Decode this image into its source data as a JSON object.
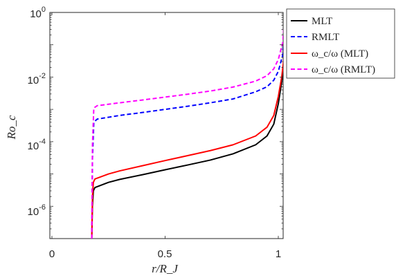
{
  "chart_data": {
    "type": "line",
    "xlabel": "r/R_J",
    "ylabel": "Ro_c",
    "xlim": [
      0,
      1.03
    ],
    "ylim_log10": [
      -7,
      0
    ],
    "y_scale": "log",
    "grid": false,
    "legend_placement": "top-right, outside axes",
    "xticks": [
      {
        "value": 0,
        "label": "0"
      },
      {
        "value": 0.5,
        "label": "0.5"
      },
      {
        "value": 1,
        "label": "1"
      }
    ],
    "yticks": [
      {
        "exp": 0,
        "base": "10",
        "sup": "0"
      },
      {
        "exp": -2,
        "base": "10",
        "sup": "-2"
      },
      {
        "exp": -4,
        "base": "10",
        "sup": "-4"
      },
      {
        "exp": -6,
        "base": "10",
        "sup": "-6"
      }
    ],
    "series": [
      {
        "name": "MLT",
        "color": "#000000",
        "dash": "solid",
        "points": [
          [
            0.176,
            1e-07
          ],
          [
            0.179,
            1e-06
          ],
          [
            0.183,
            3e-06
          ],
          [
            0.19,
            3.8e-06
          ],
          [
            0.25,
            5.5e-06
          ],
          [
            0.3,
            6.8e-06
          ],
          [
            0.4,
            9.5e-06
          ],
          [
            0.5,
            1.35e-05
          ],
          [
            0.6,
            1.9e-05
          ],
          [
            0.7,
            2.7e-05
          ],
          [
            0.8,
            4.2e-05
          ],
          [
            0.9,
            8e-05
          ],
          [
            0.95,
            0.00015
          ],
          [
            0.98,
            0.00035
          ],
          [
            1.0,
            0.0015
          ],
          [
            1.015,
            0.007
          ],
          [
            1.025,
            0.025
          ]
        ]
      },
      {
        "name": "RMLT",
        "color": "#0000ff",
        "dash": "dashed",
        "points": [
          [
            0.176,
            1e-07
          ],
          [
            0.179,
            3e-05
          ],
          [
            0.185,
            0.0004
          ],
          [
            0.2,
            0.0005
          ],
          [
            0.3,
            0.00065
          ],
          [
            0.4,
            0.0008
          ],
          [
            0.5,
            0.001
          ],
          [
            0.6,
            0.00125
          ],
          [
            0.7,
            0.0016
          ],
          [
            0.8,
            0.0021
          ],
          [
            0.9,
            0.0035
          ],
          [
            0.95,
            0.005
          ],
          [
            0.98,
            0.008
          ],
          [
            1.0,
            0.015
          ],
          [
            1.02,
            0.05
          ],
          [
            1.025,
            0.15
          ]
        ]
      },
      {
        "name": "ω_c/ω (MLT)",
        "color": "#ff0000",
        "dash": "solid",
        "points": [
          [
            0.176,
            1e-07
          ],
          [
            0.179,
            2e-06
          ],
          [
            0.183,
            5.5e-06
          ],
          [
            0.19,
            7e-06
          ],
          [
            0.25,
            1e-05
          ],
          [
            0.3,
            1.25e-05
          ],
          [
            0.4,
            1.8e-05
          ],
          [
            0.5,
            2.6e-05
          ],
          [
            0.6,
            3.7e-05
          ],
          [
            0.7,
            5.3e-05
          ],
          [
            0.8,
            8e-05
          ],
          [
            0.9,
            0.00015
          ],
          [
            0.95,
            0.00028
          ],
          [
            0.98,
            0.00065
          ],
          [
            1.0,
            0.0025
          ],
          [
            1.015,
            0.01
          ],
          [
            1.025,
            0.04
          ]
        ]
      },
      {
        "name": "ω_c/ω (RMLT)",
        "color": "#ff00ff",
        "dash": "dashed",
        "points": [
          [
            0.176,
            1e-07
          ],
          [
            0.179,
            8e-05
          ],
          [
            0.185,
            0.0011
          ],
          [
            0.2,
            0.0013
          ],
          [
            0.3,
            0.0016
          ],
          [
            0.4,
            0.00195
          ],
          [
            0.5,
            0.0024
          ],
          [
            0.6,
            0.00295
          ],
          [
            0.7,
            0.0037
          ],
          [
            0.8,
            0.0049
          ],
          [
            0.9,
            0.0075
          ],
          [
            0.95,
            0.011
          ],
          [
            0.98,
            0.018
          ],
          [
            1.0,
            0.035
          ],
          [
            1.02,
            0.12
          ],
          [
            1.025,
            0.4
          ]
        ]
      }
    ]
  }
}
